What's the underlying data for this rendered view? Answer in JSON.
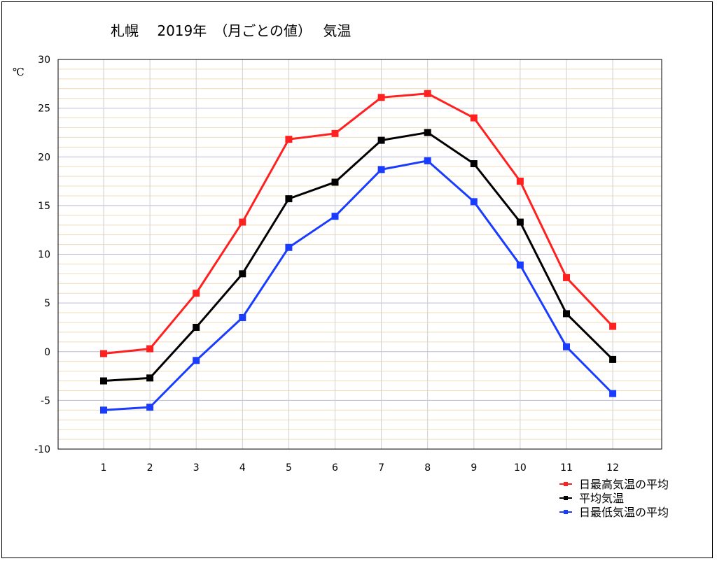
{
  "chart_data": {
    "type": "line",
    "title": "札幌　 2019年　（月ごとの値）　 気温",
    "ylabel": "℃",
    "xlabel": "",
    "categories": [
      "1",
      "2",
      "3",
      "4",
      "5",
      "6",
      "7",
      "8",
      "9",
      "10",
      "11",
      "12"
    ],
    "ylim": [
      -10,
      30
    ],
    "yticks": [
      -10,
      -5,
      0,
      5,
      10,
      15,
      20,
      25,
      30
    ],
    "grid": true,
    "legend_position": "bottom-right",
    "series": [
      {
        "name": "日最高気温の平均",
        "color": "#ff2020",
        "values": [
          -0.2,
          0.3,
          6.0,
          13.3,
          21.8,
          22.4,
          26.1,
          26.5,
          24.0,
          17.5,
          7.6,
          2.6
        ]
      },
      {
        "name": "平均気温",
        "color": "#000000",
        "values": [
          -3.0,
          -2.7,
          2.5,
          8.0,
          15.7,
          17.4,
          21.7,
          22.5,
          19.3,
          13.3,
          3.9,
          -0.8
        ]
      },
      {
        "name": "日最低気温の平均",
        "color": "#1a3cff",
        "values": [
          -6.0,
          -5.7,
          -0.9,
          3.5,
          10.7,
          13.9,
          18.7,
          19.6,
          15.4,
          8.9,
          0.5,
          -4.3
        ]
      }
    ]
  }
}
